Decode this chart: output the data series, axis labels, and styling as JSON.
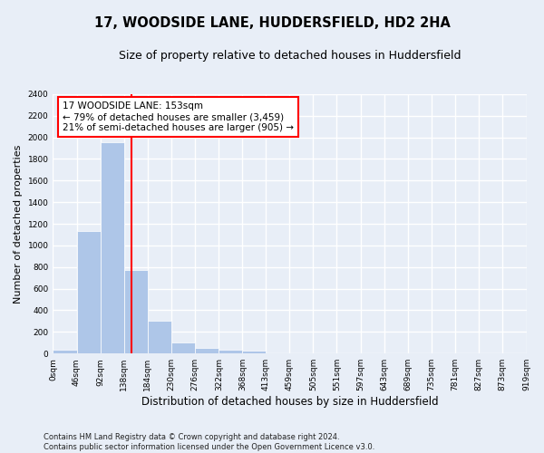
{
  "title": "17, WOODSIDE LANE, HUDDERSFIELD, HD2 2HA",
  "subtitle": "Size of property relative to detached houses in Huddersfield",
  "xlabel": "Distribution of detached houses by size in Huddersfield",
  "ylabel": "Number of detached properties",
  "bin_edges": [
    0,
    46,
    92,
    138,
    184,
    230,
    276,
    322,
    368,
    413,
    459,
    505,
    551,
    597,
    643,
    689,
    735,
    781,
    827,
    873,
    919
  ],
  "bar_heights": [
    35,
    1130,
    1955,
    775,
    300,
    100,
    48,
    38,
    25,
    0,
    0,
    0,
    0,
    0,
    0,
    0,
    0,
    0,
    0,
    0
  ],
  "bar_color": "#aec6e8",
  "property_line_x": 153,
  "annotation_line1": "17 WOODSIDE LANE: 153sqm",
  "annotation_line2": "← 79% of detached houses are smaller (3,459)",
  "annotation_line3": "21% of semi-detached houses are larger (905) →",
  "red_line_color": "red",
  "ylim": [
    0,
    2400
  ],
  "yticks": [
    0,
    200,
    400,
    600,
    800,
    1000,
    1200,
    1400,
    1600,
    1800,
    2000,
    2200,
    2400
  ],
  "tick_labels": [
    "0sqm",
    "46sqm",
    "92sqm",
    "138sqm",
    "184sqm",
    "230sqm",
    "276sqm",
    "322sqm",
    "368sqm",
    "413sqm",
    "459sqm",
    "505sqm",
    "551sqm",
    "597sqm",
    "643sqm",
    "689sqm",
    "735sqm",
    "781sqm",
    "827sqm",
    "873sqm",
    "919sqm"
  ],
  "footer_text": "Contains HM Land Registry data © Crown copyright and database right 2024.\nContains public sector information licensed under the Open Government Licence v3.0.",
  "background_color": "#e8eef7",
  "grid_color": "white",
  "title_fontsize": 10.5,
  "subtitle_fontsize": 9,
  "xlabel_fontsize": 8.5,
  "ylabel_fontsize": 8,
  "tick_fontsize": 6.5,
  "annotation_fontsize": 7.5,
  "footer_fontsize": 6
}
